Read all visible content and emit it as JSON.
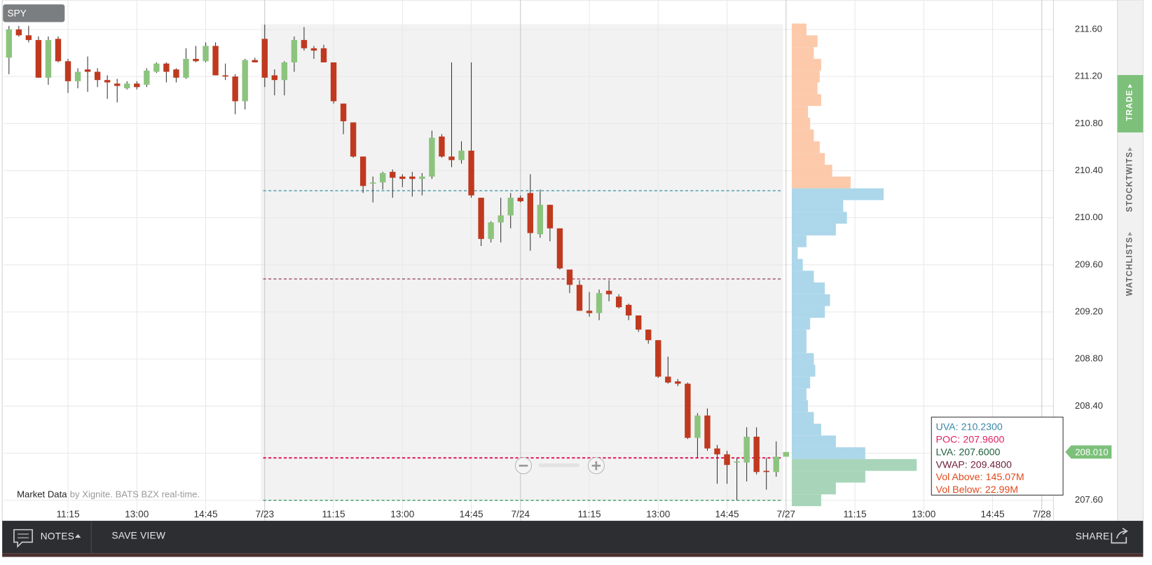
{
  "chart_data": {
    "type": "candlestick",
    "categories": [
      null,
      null,
      null,
      null,
      null,
      null,
      "11:15",
      null,
      null,
      null,
      null,
      null,
      null,
      "13:00",
      null,
      null,
      null,
      null,
      null,
      null,
      "14:45",
      null,
      null,
      null,
      null,
      null,
      "7/23",
      null,
      null,
      null,
      null,
      null,
      null,
      "11:15",
      null,
      null,
      null,
      null,
      null,
      null,
      "13:00",
      null,
      null,
      null,
      null,
      null,
      null,
      "14:45",
      null,
      null,
      null,
      null,
      "7/24",
      null,
      null,
      null,
      null,
      null,
      null,
      "11:15",
      null,
      null,
      null,
      null,
      null,
      null,
      "13:00",
      null,
      null,
      null,
      null,
      null,
      null,
      "14:45",
      null,
      null,
      null,
      null,
      null,
      "7/27",
      null,
      null,
      null,
      null,
      null,
      null,
      "11:15",
      null,
      null,
      null,
      null,
      null,
      null,
      "13:00",
      null,
      null,
      null,
      null,
      null,
      null,
      "14:45",
      null,
      null,
      null,
      null,
      "7/28"
    ],
    "open": [
      211.36,
      211.6,
      211.55,
      211.51,
      211.19,
      211.52,
      211.33,
      211.16,
      211.26,
      211.24,
      211.17,
      211.14,
      211.1,
      211.14,
      211.13,
      211.24,
      211.31,
      211.26,
      211.19,
      211.35,
      211.33,
      211.46,
      211.21,
      211.2,
      210.99,
      211.34,
      211.52,
      211.21,
      211.17,
      211.32,
      211.51,
      211.44,
      211.44,
      211.32,
      210.97,
      210.81,
      210.52,
      210.29,
      210.3,
      210.39,
      210.35,
      210.35,
      210.33,
      210.35,
      210.69,
      210.52,
      210.49,
      210.57,
      210.17,
      209.82,
      209.96,
      210.02,
      210.17,
      210.21,
      209.86,
      210.11,
      209.91,
      209.56,
      209.43,
      209.21,
      209.19,
      209.38,
      209.33,
      209.26,
      209.17,
      209.05,
      208.96,
      208.65,
      208.61,
      208.59,
      208.13,
      208.32,
      208.04,
      207.99,
      207.92,
      207.92,
      208.14,
      207.85,
      207.84,
      207.97,
      null,
      null,
      null,
      null,
      null,
      null,
      null,
      null,
      null,
      null,
      null,
      null,
      null,
      null,
      null,
      null,
      null,
      null,
      null,
      null,
      null,
      null,
      null,
      null,
      null,
      null
    ],
    "high": [
      211.63,
      211.63,
      211.63,
      211.54,
      211.54,
      211.54,
      211.35,
      211.27,
      211.37,
      211.27,
      211.21,
      211.18,
      211.16,
      211.16,
      211.27,
      211.32,
      211.32,
      211.27,
      211.44,
      211.46,
      211.49,
      211.49,
      211.31,
      211.22,
      211.35,
      211.36,
      211.64,
      211.26,
      211.33,
      211.54,
      211.62,
      211.46,
      211.47,
      211.32,
      210.97,
      210.81,
      210.52,
      210.35,
      210.39,
      210.41,
      210.37,
      210.39,
      210.38,
      210.74,
      210.71,
      211.32,
      210.65,
      211.32,
      210.17,
      209.97,
      210.17,
      210.21,
      210.19,
      210.37,
      210.24,
      210.11,
      209.91,
      209.56,
      209.47,
      209.37,
      209.39,
      209.47,
      209.35,
      209.27,
      209.17,
      209.05,
      208.96,
      208.82,
      208.63,
      208.6,
      208.34,
      208.38,
      208.07,
      208.02,
      207.96,
      208.22,
      208.22,
      207.96,
      208.1,
      208.01,
      null,
      null,
      null,
      null,
      null,
      null,
      null,
      null,
      null,
      null,
      null,
      null,
      null,
      null,
      null,
      null,
      null,
      null,
      null,
      null,
      null,
      null,
      null,
      null,
      null,
      null
    ],
    "low": [
      211.22,
      211.54,
      211.49,
      211.19,
      211.13,
      211.32,
      211.06,
      211.1,
      211.07,
      211.11,
      211.01,
      210.98,
      211.09,
      211.09,
      211.11,
      211.23,
      211.15,
      211.15,
      211.18,
      211.32,
      211.32,
      211.21,
      211.17,
      210.88,
      210.92,
      211.32,
      211.11,
      211.04,
      211.04,
      211.24,
      211.42,
      211.35,
      211.32,
      210.97,
      210.71,
      210.51,
      210.21,
      210.13,
      210.24,
      210.17,
      210.26,
      210.18,
      210.19,
      210.33,
      210.51,
      210.43,
      210.46,
      210.17,
      209.76,
      209.79,
      209.79,
      209.91,
      210.13,
      209.72,
      209.83,
      209.8,
      209.56,
      209.36,
      209.21,
      209.16,
      209.13,
      209.29,
      209.23,
      209.13,
      209.03,
      208.93,
      208.64,
      208.59,
      208.57,
      208.12,
      207.96,
      208.02,
      207.74,
      207.74,
      207.6,
      207.76,
      207.82,
      207.69,
      207.8,
      207.97,
      null,
      null,
      null,
      null,
      null,
      null,
      null,
      null,
      null,
      null,
      null,
      null,
      null,
      null,
      null,
      null,
      null,
      null,
      null,
      null,
      null,
      null,
      null,
      null,
      null,
      null
    ],
    "close": [
      211.6,
      211.55,
      211.51,
      211.19,
      211.51,
      211.33,
      211.16,
      211.24,
      211.24,
      211.17,
      211.15,
      211.12,
      211.14,
      211.11,
      211.25,
      211.31,
      211.24,
      211.19,
      211.35,
      211.33,
      211.46,
      211.21,
      211.2,
      210.99,
      211.34,
      211.32,
      211.19,
      211.17,
      211.32,
      211.51,
      211.44,
      211.42,
      211.32,
      210.99,
      210.82,
      210.52,
      210.27,
      210.3,
      210.38,
      210.34,
      210.33,
      210.33,
      210.35,
      210.68,
      210.52,
      210.49,
      210.57,
      210.19,
      209.82,
      209.96,
      210.02,
      210.17,
      210.14,
      209.87,
      210.11,
      209.91,
      209.57,
      209.43,
      209.21,
      209.19,
      209.36,
      209.35,
      209.24,
      209.17,
      209.05,
      208.96,
      208.65,
      208.6,
      208.59,
      208.13,
      208.32,
      208.04,
      207.99,
      207.9,
      207.93,
      208.14,
      207.84,
      207.84,
      207.97,
      208.01,
      null,
      null,
      null,
      null,
      null,
      null,
      null,
      null,
      null,
      null,
      null,
      null,
      null,
      null,
      null,
      null,
      null,
      null,
      null,
      null,
      null,
      null,
      null,
      null,
      null,
      null
    ],
    "up_color": "#8cc47e",
    "down_color": "#c0391f",
    "ylim": [
      207.5,
      211.85
    ],
    "yticks": [
      {
        "value": 211.6,
        "label": "211.60"
      },
      {
        "value": 211.2,
        "label": "211.20"
      },
      {
        "value": 210.8,
        "label": "210.80"
      },
      {
        "value": 210.4,
        "label": "210.40"
      },
      {
        "value": 210.0,
        "label": "210.00"
      },
      {
        "value": 209.6,
        "label": "209.60"
      },
      {
        "value": 209.2,
        "label": "209.20"
      },
      {
        "value": 208.8,
        "label": "208.80"
      },
      {
        "value": 208.4,
        "label": "208.40"
      },
      {
        "value": 208.0,
        "label": "208.00"
      },
      {
        "value": 207.6,
        "label": "207.60"
      }
    ],
    "grid": true,
    "last_price": {
      "value": 208.01,
      "label": "208.010",
      "color": "#7cc07a"
    },
    "volume_profile": {
      "prices": [
        211.6,
        211.5,
        211.4,
        211.3,
        211.2,
        211.1,
        211.0,
        210.9,
        210.8,
        210.7,
        210.6,
        210.5,
        210.4,
        210.3,
        210.2,
        210.1,
        210.0,
        209.9,
        209.8,
        209.7,
        209.6,
        209.5,
        209.4,
        209.3,
        209.2,
        209.1,
        209.0,
        208.9,
        208.8,
        208.7,
        208.6,
        208.5,
        208.4,
        208.3,
        208.2,
        208.1,
        208.0,
        207.9,
        207.8,
        207.7,
        207.6
      ],
      "volumes": [
        20,
        35,
        30,
        40,
        38,
        35,
        40,
        22,
        25,
        30,
        38,
        45,
        55,
        80,
        125,
        70,
        75,
        60,
        20,
        8,
        15,
        30,
        45,
        52,
        45,
        25,
        20,
        20,
        30,
        32,
        25,
        20,
        22,
        30,
        40,
        60,
        100,
        170,
        100,
        60,
        40
      ],
      "above_color": "#fcc9aa",
      "value_area_color": "#acd6ea",
      "below_color": "#a8d5b9"
    },
    "stats": [
      {
        "label": "UVA:",
        "price": 210.23,
        "price_label": "210.2300",
        "color": "#3a86a6",
        "line_color": "#4a9ba8"
      },
      {
        "label": "POC:",
        "price": 207.96,
        "price_label": "207.9600",
        "color": "#e0245e",
        "line_color": "#e0245e"
      },
      {
        "label": "LVA:",
        "price": 207.6,
        "price_label": "207.6000",
        "color": "#1f5e3f",
        "line_color": "#3a9a6a"
      },
      {
        "label": "VWAP:",
        "price": 209.48,
        "price_label": "209.4800",
        "color": "#6e1e3a",
        "line_color": "#9b4a6a"
      },
      {
        "label": "Vol Above:",
        "value": 145070000,
        "value_label": "145.07M",
        "color": "#e0491c"
      },
      {
        "label": "Vol Below:",
        "value": 22990000,
        "value_label": "22.99M",
        "color": "#e0491c"
      }
    ]
  },
  "ui": {
    "symbol": "SPY",
    "attribution": {
      "source": "Market Data",
      "detail": "by Xignite. BATS BZX real-time."
    },
    "toolbar": {
      "notes": "NOTES",
      "save_view": "SAVE VIEW",
      "share": "SHARE"
    },
    "sidebar": [
      "TRADE",
      "STOCKTWITS",
      "WATCHLISTS"
    ]
  }
}
